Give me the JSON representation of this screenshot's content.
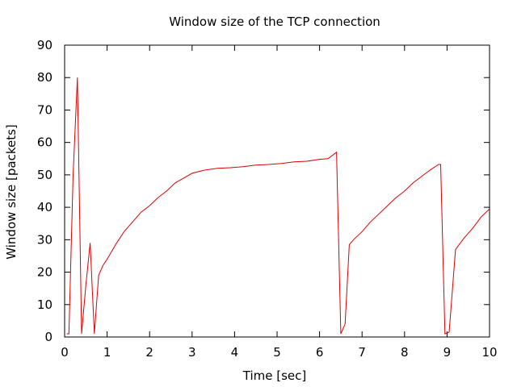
{
  "chart_data": {
    "type": "line",
    "title": "Window size of the TCP connection",
    "xlabel": "Time [sec]",
    "ylabel": "Window size [packets]",
    "xlim": [
      0,
      10
    ],
    "ylim": [
      0,
      90
    ],
    "xticks": [
      "0",
      "1",
      "2",
      "3",
      "4",
      "5",
      "6",
      "7",
      "8",
      "9",
      "10"
    ],
    "yticks": [
      "0",
      "10",
      "20",
      "30",
      "40",
      "50",
      "60",
      "70",
      "80",
      "90"
    ],
    "grid": false,
    "legend": "none",
    "series": [
      {
        "color": "#dd0000",
        "x": [
          0.05,
          0.1,
          0.2,
          0.3,
          0.4,
          0.5,
          0.6,
          0.7,
          0.8,
          0.9,
          1.0,
          1.2,
          1.4,
          1.6,
          1.8,
          2.0,
          2.2,
          2.4,
          2.6,
          2.8,
          3.0,
          3.3,
          3.6,
          3.9,
          4.2,
          4.5,
          4.8,
          5.1,
          5.4,
          5.7,
          6.0,
          6.2,
          6.3,
          6.4,
          6.5,
          6.6,
          6.7,
          6.8,
          7.0,
          7.2,
          7.4,
          7.6,
          7.8,
          8.0,
          8.2,
          8.4,
          8.6,
          8.8,
          8.85,
          8.95,
          9.05,
          9.2,
          9.4,
          9.6,
          9.8,
          10.0
        ],
        "y": [
          1,
          1,
          50,
          80,
          1,
          16,
          29,
          1,
          19,
          22,
          24,
          28.5,
          32.5,
          35.5,
          38.5,
          40.5,
          43,
          45,
          47.5,
          49,
          50.5,
          51.5,
          52,
          52.2,
          52.5,
          53,
          53.2,
          53.5,
          54,
          54.2,
          54.8,
          55,
          56,
          57,
          1,
          4,
          28.5,
          30,
          32.5,
          35.5,
          38,
          40.5,
          43,
          45,
          47.5,
          49.5,
          51.5,
          53.2,
          53.2,
          1,
          1.5,
          27,
          30.5,
          33.5,
          37,
          39.5
        ]
      }
    ]
  }
}
